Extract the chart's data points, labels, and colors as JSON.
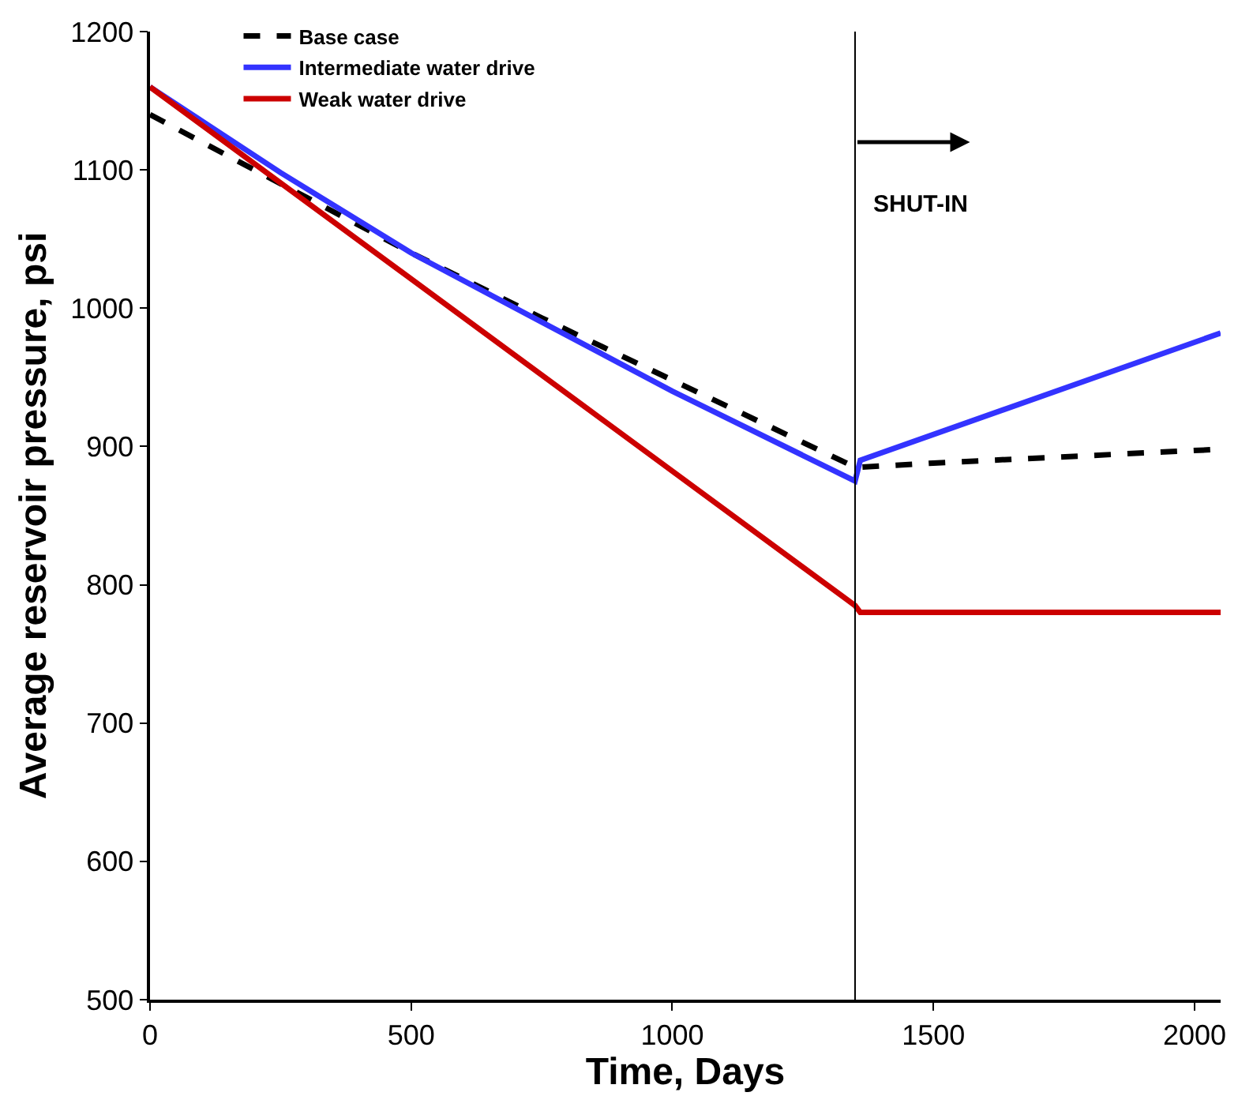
{
  "chart_data": {
    "type": "line",
    "xlabel": "Time, Days",
    "ylabel": "Average reservoir pressure, psi",
    "xlim": [
      0,
      2050
    ],
    "ylim": [
      500,
      1200
    ],
    "xticks": [
      0,
      500,
      1000,
      1500,
      2000
    ],
    "yticks": [
      500,
      600,
      700,
      800,
      900,
      1000,
      1100,
      1200
    ],
    "legend": "top left",
    "series": [
      {
        "name": "Base case",
        "color": "#000000",
        "line_style": "dashed",
        "x": [
          0,
          250,
          500,
          750,
          1000,
          1350,
          1360,
          1500,
          2050
        ],
        "values": [
          1140,
          1090,
          1040,
          993,
          948,
          885,
          885,
          888,
          898
        ]
      },
      {
        "name": "Intermediate water drive",
        "color": "#3333ff",
        "line_style": "solid",
        "x": [
          0,
          250,
          500,
          750,
          1000,
          1350,
          1360,
          2050
        ],
        "values": [
          1160,
          1098,
          1040,
          990,
          940,
          875,
          890,
          982
        ]
      },
      {
        "name": "Weak water drive",
        "color": "#cc0000",
        "line_style": "solid",
        "x": [
          0,
          1350,
          1360,
          2050
        ],
        "values": [
          1160,
          785,
          780,
          780
        ]
      }
    ],
    "ref_lines": [
      {
        "axis": "x",
        "value": 1350,
        "label": "SHUT-IN",
        "color": "#000000"
      }
    ]
  }
}
